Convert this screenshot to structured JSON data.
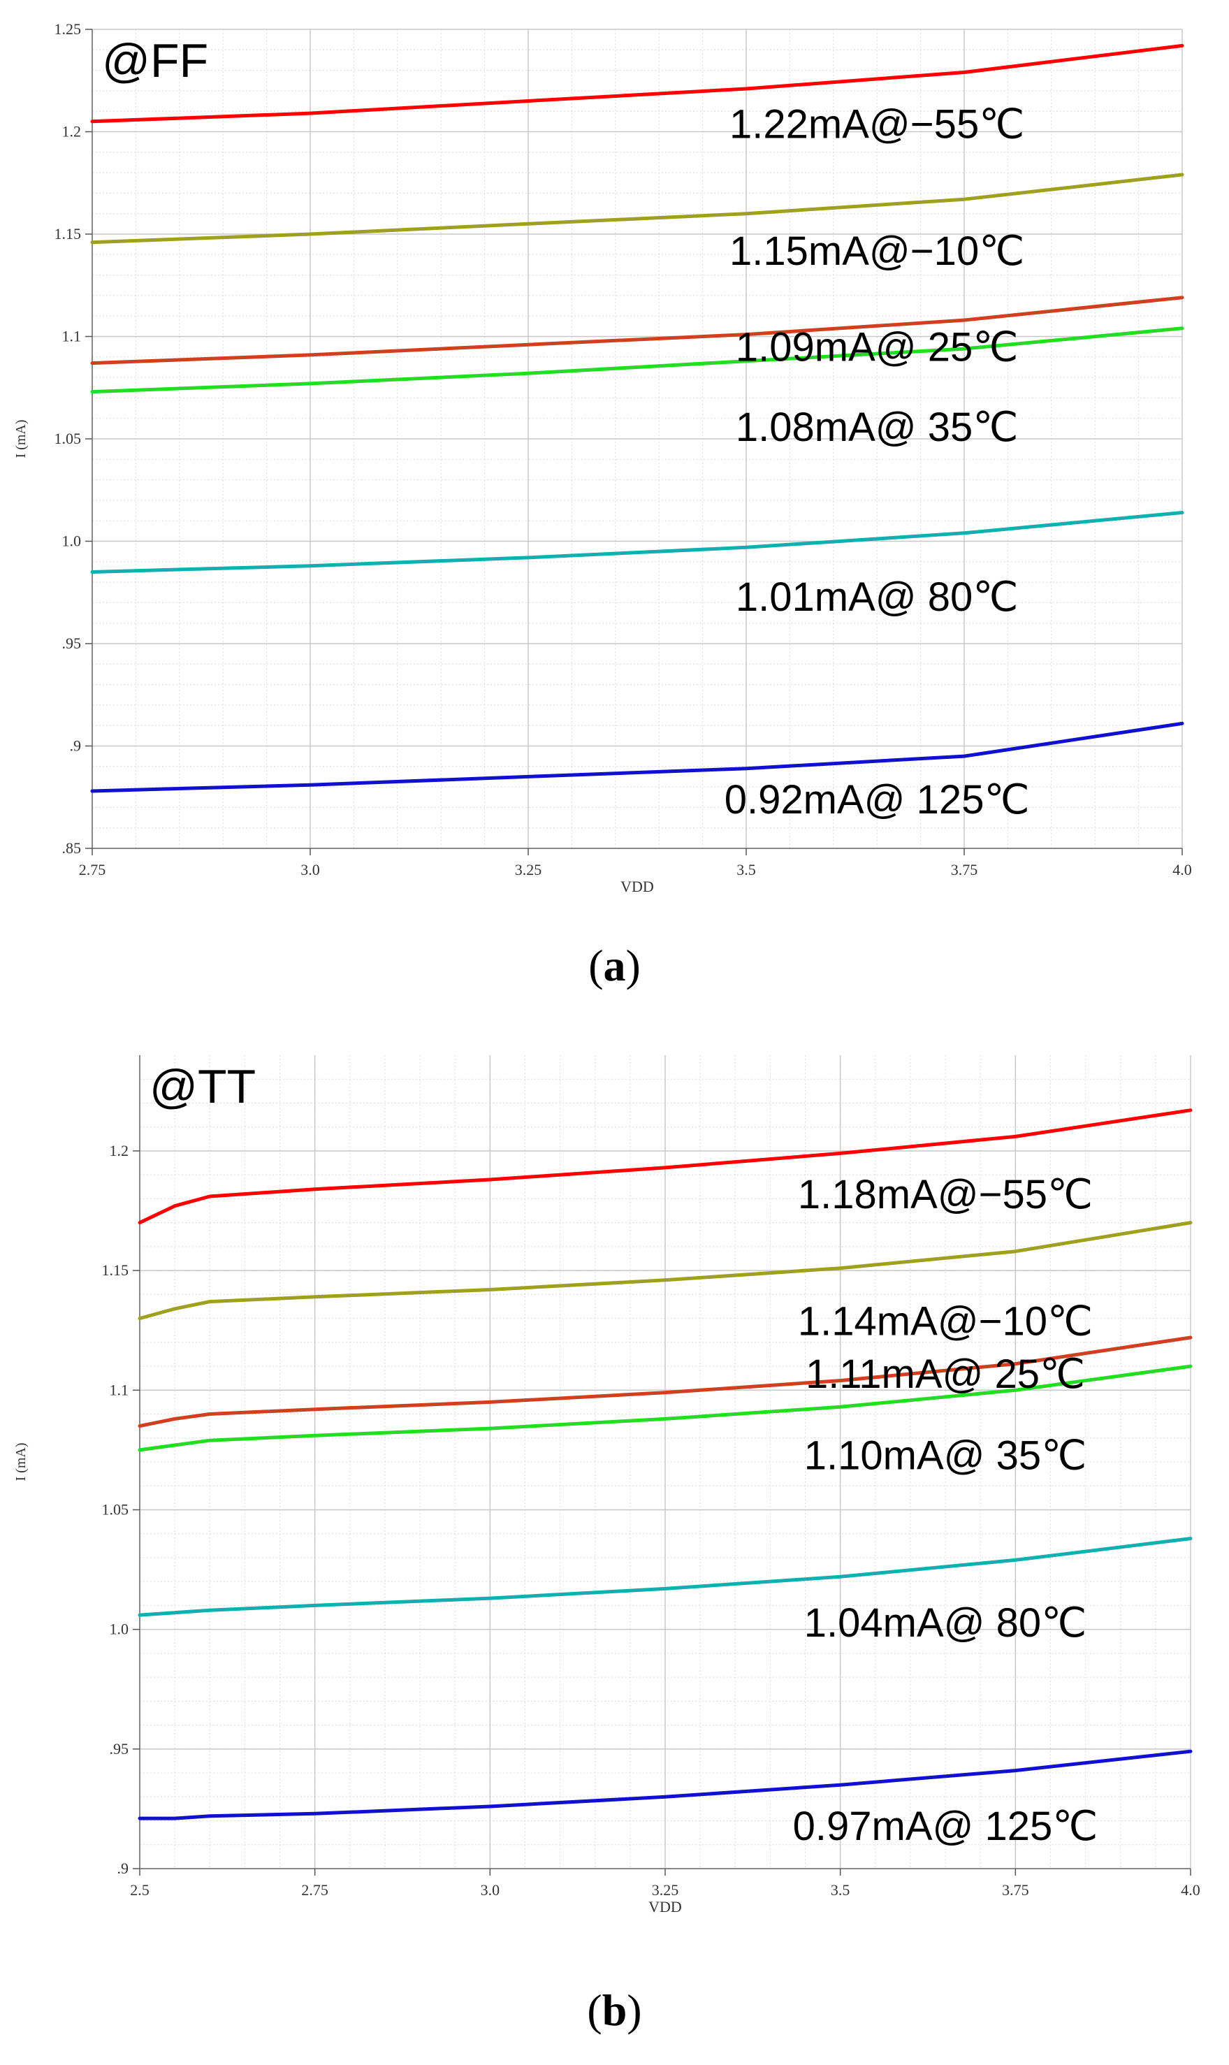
{
  "chart_data": [
    {
      "type": "line",
      "panel": "a",
      "title": "@FF",
      "xlabel": "VDD",
      "ylabel": "I (mA)",
      "xlim": [
        2.75,
        4.0
      ],
      "ylim": [
        0.85,
        1.25
      ],
      "xticks": [
        2.75,
        3.0,
        3.25,
        3.5,
        3.75,
        4.0
      ],
      "xtick_labels": [
        "2.75",
        "3.0",
        "3.25",
        "3.5",
        "3.75",
        "4.0"
      ],
      "yticks": [
        0.85,
        0.9,
        0.95,
        1.0,
        1.05,
        1.1,
        1.15,
        1.2,
        1.25
      ],
      "ytick_labels": [
        ".85",
        ".9",
        ".95",
        "1.0",
        "1.05",
        "1.1",
        "1.15",
        "1.2",
        "1.25"
      ],
      "grid": true,
      "caption": "a",
      "series": [
        {
          "name": "1.22mA@−55℃",
          "color": "#ff0000",
          "x": [
            2.75,
            3.0,
            3.25,
            3.5,
            3.75,
            4.0
          ],
          "y": [
            1.205,
            1.209,
            1.215,
            1.221,
            1.229,
            1.242
          ],
          "label_x": 3.65,
          "label_y": 1.197
        },
        {
          "name": "1.15mA@−10℃",
          "color": "#a0a020",
          "x": [
            2.75,
            3.0,
            3.25,
            3.5,
            3.75,
            4.0
          ],
          "y": [
            1.146,
            1.15,
            1.155,
            1.16,
            1.167,
            1.179
          ],
          "label_x": 3.65,
          "label_y": 1.135
        },
        {
          "name": "1.09mA@ 25℃",
          "color": "#d04020",
          "x": [
            2.75,
            3.0,
            3.25,
            3.5,
            3.75,
            4.0
          ],
          "y": [
            1.087,
            1.091,
            1.096,
            1.101,
            1.108,
            1.119
          ],
          "label_x": 3.65,
          "label_y": 1.088
        },
        {
          "name": "1.08mA@ 35℃",
          "color": "#22dd22",
          "x": [
            2.75,
            3.0,
            3.25,
            3.5,
            3.75,
            4.0
          ],
          "y": [
            1.073,
            1.077,
            1.082,
            1.088,
            1.094,
            1.104
          ],
          "label_x": 3.65,
          "label_y": 1.049
        },
        {
          "name": "1.01mA@ 80℃",
          "color": "#10b0b0",
          "x": [
            2.75,
            3.0,
            3.25,
            3.5,
            3.75,
            4.0
          ],
          "y": [
            0.985,
            0.988,
            0.992,
            0.997,
            1.004,
            1.014
          ],
          "label_x": 3.65,
          "label_y": 0.966
        },
        {
          "name": "0.92mA@ 125℃",
          "color": "#1010d0",
          "x": [
            2.75,
            3.0,
            3.25,
            3.5,
            3.75,
            4.0
          ],
          "y": [
            0.878,
            0.881,
            0.885,
            0.889,
            0.895,
            0.911
          ],
          "label_x": 3.65,
          "label_y": 0.867
        }
      ]
    },
    {
      "type": "line",
      "panel": "b",
      "title": "@TT",
      "xlabel": "VDD",
      "ylabel": "I (mA)",
      "xlim": [
        2.5,
        4.0
      ],
      "ylim": [
        0.9,
        1.24
      ],
      "xticks": [
        2.5,
        2.75,
        3.0,
        3.25,
        3.5,
        3.75,
        4.0
      ],
      "xtick_labels": [
        "2.5",
        "2.75",
        "3.0",
        "3.25",
        "3.5",
        "3.75",
        "4.0"
      ],
      "yticks": [
        0.9,
        0.95,
        1.0,
        1.05,
        1.1,
        1.15,
        1.2
      ],
      "ytick_labels": [
        ".9",
        ".95",
        "1.0",
        "1.05",
        "1.1",
        "1.15",
        "1.2"
      ],
      "grid": true,
      "caption": "b",
      "series": [
        {
          "name": "1.18mA@−55℃",
          "color": "#ff0000",
          "x": [
            2.5,
            2.55,
            2.6,
            2.75,
            3.0,
            3.25,
            3.5,
            3.75,
            4.0
          ],
          "y": [
            1.17,
            1.177,
            1.181,
            1.184,
            1.188,
            1.193,
            1.199,
            1.206,
            1.217
          ],
          "label_x": 3.65,
          "label_y": 1.176
        },
        {
          "name": "1.14mA@−10℃",
          "color": "#a0a020",
          "x": [
            2.5,
            2.55,
            2.6,
            2.75,
            3.0,
            3.25,
            3.5,
            3.75,
            4.0
          ],
          "y": [
            1.13,
            1.134,
            1.137,
            1.139,
            1.142,
            1.146,
            1.151,
            1.158,
            1.17
          ],
          "label_x": 3.65,
          "label_y": 1.123
        },
        {
          "name": "1.11mA@ 25℃",
          "color": "#d04020",
          "x": [
            2.5,
            2.55,
            2.6,
            2.75,
            3.0,
            3.25,
            3.5,
            3.75,
            4.0
          ],
          "y": [
            1.085,
            1.088,
            1.09,
            1.092,
            1.095,
            1.099,
            1.104,
            1.111,
            1.122
          ],
          "label_x": 3.65,
          "label_y": 1.101
        },
        {
          "name": "1.10mA@ 35℃",
          "color": "#22dd22",
          "x": [
            2.5,
            2.55,
            2.6,
            2.75,
            3.0,
            3.25,
            3.5,
            3.75,
            4.0
          ],
          "y": [
            1.075,
            1.077,
            1.079,
            1.081,
            1.084,
            1.088,
            1.093,
            1.1,
            1.11
          ],
          "label_x": 3.65,
          "label_y": 1.067
        },
        {
          "name": "1.04mA@ 80℃",
          "color": "#10b0b0",
          "x": [
            2.5,
            2.55,
            2.6,
            2.75,
            3.0,
            3.25,
            3.5,
            3.75,
            4.0
          ],
          "y": [
            1.006,
            1.007,
            1.008,
            1.01,
            1.013,
            1.017,
            1.022,
            1.029,
            1.038
          ],
          "label_x": 3.65,
          "label_y": 0.997
        },
        {
          "name": "0.97mA@ 125℃",
          "color": "#1010d0",
          "x": [
            2.5,
            2.55,
            2.6,
            2.75,
            3.0,
            3.25,
            3.5,
            3.75,
            4.0
          ],
          "y": [
            0.921,
            0.921,
            0.922,
            0.923,
            0.926,
            0.93,
            0.935,
            0.941,
            0.949
          ],
          "label_x": 3.65,
          "label_y": 0.912
        }
      ]
    }
  ]
}
